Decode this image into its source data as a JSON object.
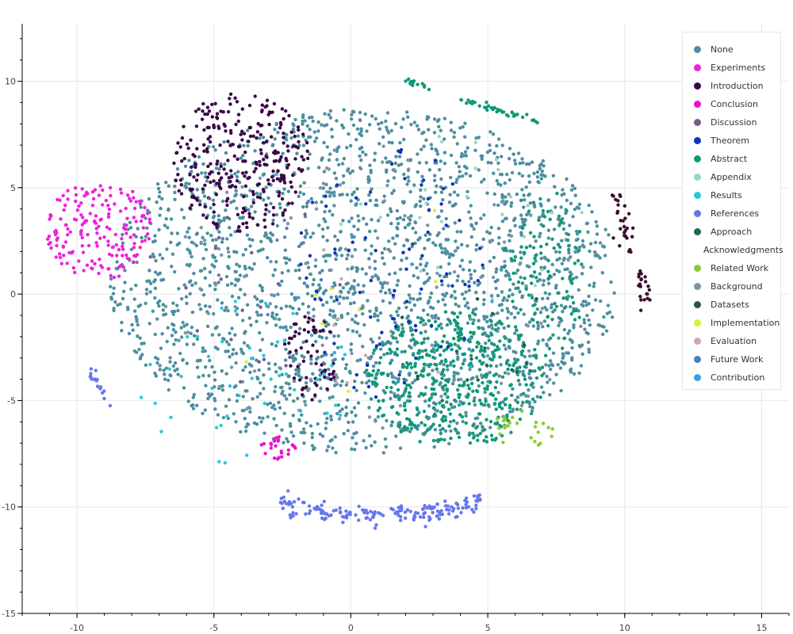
{
  "chart_data": {
    "type": "scatter",
    "title": "",
    "xlabel": "",
    "ylabel": "",
    "xlim": [
      -12,
      16
    ],
    "ylim": [
      -15,
      12.7
    ],
    "grid": true,
    "legend_position": "top-right",
    "xticks": [
      -10,
      -5,
      0,
      5,
      10,
      15
    ],
    "yticks": [
      10,
      5,
      0,
      -5,
      -10,
      -15
    ],
    "series": [
      {
        "name": "None",
        "color": "#4d8fa0"
      },
      {
        "name": "Experiments",
        "color": "#ee22dd"
      },
      {
        "name": "Introduction",
        "color": "#3a0848"
      },
      {
        "name": "Conclusion",
        "color": "#ee11cc"
      },
      {
        "name": "Discussion",
        "color": "#7a5a8a"
      },
      {
        "name": "Theorem",
        "color": "#1133bb"
      },
      {
        "name": "Abstract",
        "color": "#119977"
      },
      {
        "name": "Appendix",
        "color": "#99d9b9"
      },
      {
        "name": "Results",
        "color": "#22ccdd"
      },
      {
        "name": "References",
        "color": "#6677ee"
      },
      {
        "name": "Approach",
        "color": "#226655"
      },
      {
        "name": "Acknowledgments",
        "color": "#3a0f2a"
      },
      {
        "name": "Related Work",
        "color": "#88cc33"
      },
      {
        "name": "Background",
        "color": "#7a95aa"
      },
      {
        "name": "Datasets",
        "color": "#2a5544"
      },
      {
        "name": "Implementation",
        "color": "#ddee33"
      },
      {
        "name": "Evaluation",
        "color": "#ccaaaa"
      },
      {
        "name": "Future Work",
        "color": "#4a7fbb"
      },
      {
        "name": "Contribution",
        "color": "#33a5dd"
      }
    ],
    "clusters": [
      {
        "series": "None",
        "shape": "disk",
        "cx": 0.5,
        "cy": 0.6,
        "rx": 9.3,
        "ry": 8.1,
        "n": 2200
      },
      {
        "series": "Background",
        "shape": "disk",
        "cx": 1,
        "cy": 0,
        "rx": 8,
        "ry": 7,
        "n": 150
      },
      {
        "series": "Experiments",
        "shape": "disk",
        "cx": -9.2,
        "cy": 3.0,
        "rx": 1.9,
        "ry": 2.4,
        "n": 180
      },
      {
        "series": "Conclusion",
        "shape": "disk",
        "cx": -2.6,
        "cy": -7.2,
        "rx": 0.7,
        "ry": 0.6,
        "n": 25
      },
      {
        "series": "Introduction",
        "shape": "disk",
        "cx": -4.0,
        "cy": 6.2,
        "rx": 2.5,
        "ry": 3.3,
        "n": 300
      },
      {
        "series": "Introduction",
        "shape": "disk",
        "cx": -1.5,
        "cy": -3.0,
        "rx": 1.0,
        "ry": 2.0,
        "n": 60
      },
      {
        "series": "Acknowledgments",
        "shape": "arc",
        "cx": 10.2,
        "cy": 2.0,
        "rx": 0.6,
        "ry": 1.9,
        "n": 50
      },
      {
        "series": "Abstract",
        "shape": "disk",
        "cx": 3.8,
        "cy": -4.0,
        "rx": 3.3,
        "ry": 3.2,
        "n": 450
      },
      {
        "series": "Abstract",
        "shape": "disk",
        "cx": 7.0,
        "cy": 1.0,
        "rx": 1.6,
        "ry": 4.0,
        "n": 110
      },
      {
        "series": "Abstract",
        "shape": "line",
        "x0": 3.8,
        "y0": 9.2,
        "x1": 7.0,
        "y1": 8.1,
        "n": 40
      },
      {
        "series": "Abstract",
        "shape": "line",
        "x0": 2.0,
        "y0": 10.1,
        "x1": 2.8,
        "y1": 9.7,
        "n": 15
      },
      {
        "series": "References",
        "shape": "band",
        "x0": -2.6,
        "x1": 4.8,
        "y": -9.8,
        "n": 170
      },
      {
        "series": "References",
        "shape": "line",
        "x0": -9.7,
        "y0": -3.2,
        "x1": -8.8,
        "y1": -5.3,
        "n": 20
      },
      {
        "series": "Theorem",
        "shape": "disk",
        "cx": 1.5,
        "cy": 1.0,
        "rx": 3.5,
        "ry": 6.0,
        "n": 80
      },
      {
        "series": "Results",
        "shape": "disk",
        "cx": -4.0,
        "cy": -4.0,
        "rx": 4.0,
        "ry": 4.0,
        "n": 45
      },
      {
        "series": "Related Work",
        "shape": "disk",
        "cx": 6.3,
        "cy": -6.3,
        "rx": 1.2,
        "ry": 0.9,
        "n": 25
      },
      {
        "series": "Appendix",
        "shape": "disk",
        "cx": 4.0,
        "cy": 3.5,
        "rx": 4.5,
        "ry": 4.0,
        "n": 25
      },
      {
        "series": "Approach",
        "shape": "disk",
        "cx": 4.5,
        "cy": -3.0,
        "rx": 3.0,
        "ry": 2.5,
        "n": 15
      },
      {
        "series": "Discussion",
        "shape": "disk",
        "cx": -4.0,
        "cy": 0.0,
        "rx": 4.0,
        "ry": 5.0,
        "n": 20
      },
      {
        "series": "Implementation",
        "shape": "disk",
        "cx": 0.0,
        "cy": 0.0,
        "rx": 5.0,
        "ry": 5.0,
        "n": 8
      },
      {
        "series": "Evaluation",
        "shape": "disk",
        "cx": 0.0,
        "cy": -1.0,
        "rx": 5.0,
        "ry": 5.0,
        "n": 8
      },
      {
        "series": "Future Work",
        "shape": "disk",
        "cx": 2.0,
        "cy": 0.0,
        "rx": 5.0,
        "ry": 5.0,
        "n": 10
      },
      {
        "series": "Contribution",
        "shape": "disk",
        "cx": 1.0,
        "cy": 0.0,
        "rx": 5.0,
        "ry": 5.0,
        "n": 10
      },
      {
        "series": "Datasets",
        "shape": "disk",
        "cx": 2.0,
        "cy": -1.0,
        "rx": 5.0,
        "ry": 5.0,
        "n": 6
      }
    ]
  }
}
